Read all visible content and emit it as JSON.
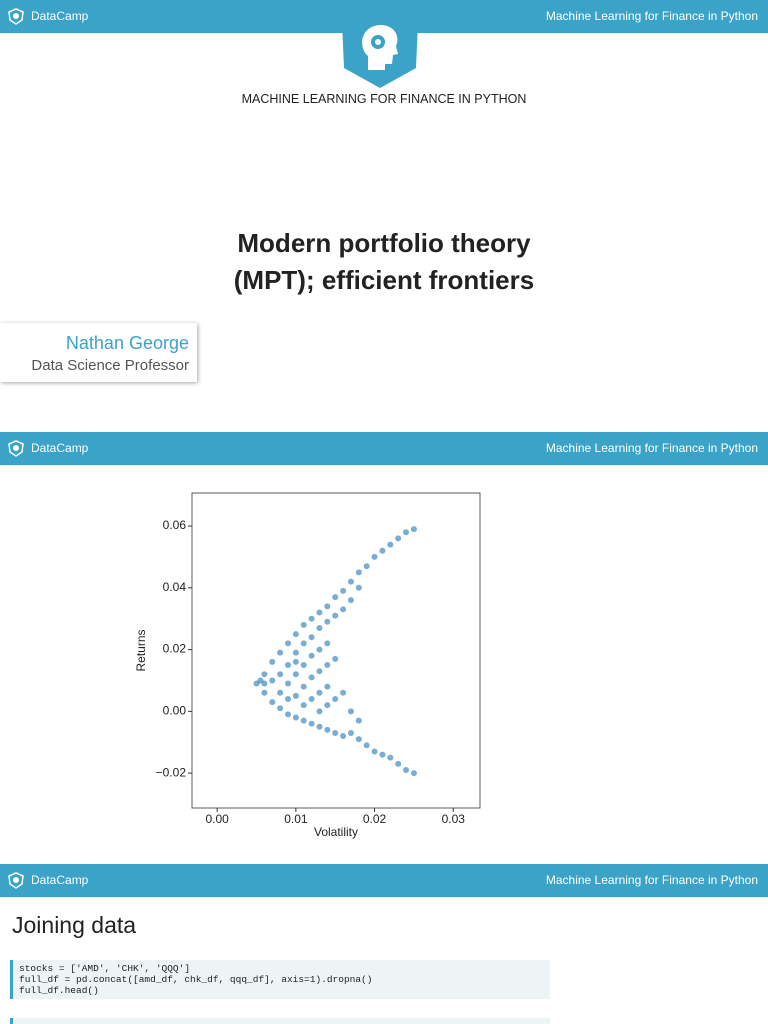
{
  "slides": [
    {
      "header": {
        "brand": "DataCamp",
        "course": "Machine Learning for Finance in Python"
      },
      "course_title": "MACHINE LEARNING FOR FINANCE IN PYTHON",
      "title_lines": [
        "Modern portfolio theory",
        "(MPT); efficient frontiers"
      ],
      "author": {
        "name": "Nathan George",
        "role": "Data Science Professor"
      }
    },
    {
      "header": {
        "brand": "DataCamp",
        "course": "Machine Learning for Finance in Python"
      }
    },
    {
      "header": {
        "brand": "DataCamp",
        "course": "Machine Learning for Finance in Python"
      },
      "heading": "Joining data",
      "code": [
        "stocks = ['AMD', 'CHK', 'QQQ']",
        "full_df = pd.concat([amd_df, chk_df, qqq_df], axis=1).dropna()",
        "full_df.head()"
      ]
    }
  ],
  "chart_data": {
    "type": "scatter",
    "xlabel": "Volatility",
    "ylabel": "Returns",
    "color": "#1f77b4",
    "x": [
      0.006,
      0.007,
      0.008,
      0.009,
      0.01,
      0.011,
      0.012,
      0.013,
      0.014,
      0.015,
      0.016,
      0.017,
      0.018,
      0.019,
      0.02,
      0.021,
      0.022,
      0.023,
      0.024,
      0.025,
      0.006,
      0.007,
      0.008,
      0.009,
      0.01,
      0.011,
      0.012,
      0.013,
      0.014,
      0.015,
      0.016,
      0.017,
      0.018,
      0.019,
      0.02,
      0.021,
      0.022,
      0.023,
      0.024,
      0.025,
      0.005,
      0.0055,
      0.006,
      0.007,
      0.008,
      0.008,
      0.009,
      0.009,
      0.01,
      0.01,
      0.01,
      0.011,
      0.011,
      0.011,
      0.011,
      0.012,
      0.012,
      0.012,
      0.012,
      0.013,
      0.013,
      0.013,
      0.013,
      0.013,
      0.014,
      0.014,
      0.014,
      0.014,
      0.014,
      0.015,
      0.015,
      0.015,
      0.016,
      0.016,
      0.017,
      0.017,
      0.018,
      0.018,
      0.009,
      0.01
    ],
    "values": [
      0.012,
      0.016,
      0.019,
      0.022,
      0.025,
      0.028,
      0.03,
      0.032,
      0.034,
      0.037,
      0.039,
      0.042,
      0.045,
      0.047,
      0.05,
      0.052,
      0.054,
      0.056,
      0.058,
      0.059,
      0.006,
      0.003,
      0.001,
      -0.001,
      -0.002,
      -0.003,
      -0.004,
      -0.005,
      -0.006,
      -0.007,
      -0.008,
      -0.007,
      -0.009,
      -0.011,
      -0.013,
      -0.014,
      -0.015,
      -0.017,
      -0.019,
      -0.02,
      0.009,
      0.01,
      0.009,
      0.01,
      0.012,
      0.006,
      0.015,
      0.009,
      0.019,
      0.012,
      0.005,
      0.022,
      0.015,
      0.008,
      0.002,
      0.024,
      0.018,
      0.011,
      0.004,
      0.027,
      0.02,
      0.013,
      0.006,
      0.0,
      0.029,
      0.022,
      0.015,
      0.008,
      0.002,
      0.031,
      0.017,
      0.004,
      0.033,
      0.006,
      0.036,
      0.0,
      0.04,
      -0.003,
      0.004,
      0.016
    ],
    "xlim": [
      -0.0032,
      0.0334
    ],
    "ylim": [
      -0.0313,
      0.0707
    ],
    "xticks": [
      {
        "value": 0,
        "label": "0.00"
      },
      {
        "value": 0.01,
        "label": "0.01"
      },
      {
        "value": 0.02,
        "label": "0.02"
      },
      {
        "value": 0.03,
        "label": "0.03"
      }
    ],
    "yticks": [
      {
        "value": -0.02,
        "label": "−0.02"
      },
      {
        "value": 0,
        "label": "0.00"
      },
      {
        "value": 0.02,
        "label": "0.02"
      },
      {
        "value": 0.04,
        "label": "0.04"
      },
      {
        "value": 0.06,
        "label": "0.06"
      }
    ]
  }
}
